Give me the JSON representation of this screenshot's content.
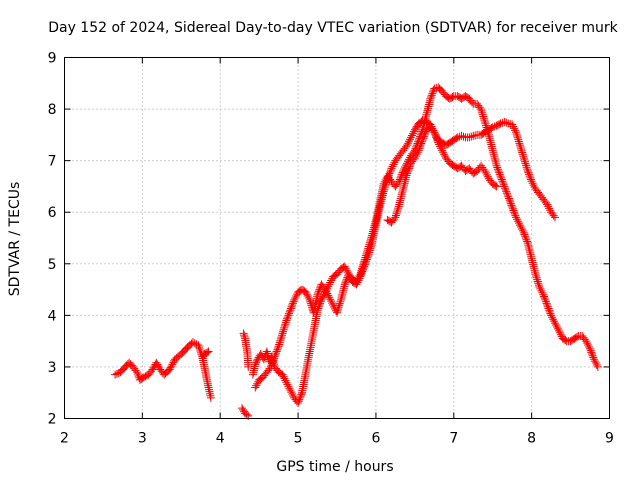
{
  "chart_data": {
    "type": "scatter",
    "title": "Day 152 of 2024, Sidereal Day-to-day VTEC variation (SDTVAR) for receiver murk",
    "xlabel": "GPS time / hours",
    "ylabel": "SDTVAR / TECUs",
    "xlim": [
      2,
      9
    ],
    "ylim": [
      2,
      9
    ],
    "xticks": [
      2,
      3,
      4,
      5,
      6,
      7,
      8,
      9
    ],
    "yticks": [
      2,
      3,
      4,
      5,
      6,
      7,
      8,
      9
    ],
    "grid": true,
    "marker": "+",
    "series": [
      {
        "name": "SDTVAR",
        "color": "#ff0000",
        "segments": [
          [
            [
              2.65,
              2.85
            ],
            [
              2.72,
              2.9
            ],
            [
              2.78,
              3.0
            ],
            [
              2.83,
              3.08
            ],
            [
              2.88,
              3.0
            ],
            [
              2.93,
              2.9
            ],
            [
              2.97,
              2.75
            ],
            [
              3.02,
              2.8
            ],
            [
              3.08,
              2.85
            ],
            [
              3.13,
              2.95
            ],
            [
              3.18,
              3.08
            ],
            [
              3.23,
              2.95
            ],
            [
              3.28,
              2.85
            ],
            [
              3.35,
              2.95
            ],
            [
              3.42,
              3.15
            ],
            [
              3.5,
              3.25
            ],
            [
              3.58,
              3.38
            ],
            [
              3.65,
              3.48
            ],
            [
              3.72,
              3.42
            ],
            [
              3.77,
              3.2
            ],
            [
              3.81,
              2.9
            ],
            [
              3.85,
              2.6
            ],
            [
              3.88,
              2.4
            ]
          ],
          [
            [
              3.78,
              3.2
            ],
            [
              3.8,
              3.25
            ],
            [
              3.85,
              3.3
            ]
          ],
          [
            [
              4.3,
              3.65
            ],
            [
              4.32,
              3.55
            ],
            [
              4.35,
              3.25
            ],
            [
              4.36,
              3.0
            ]
          ],
          [
            [
              4.28,
              2.2
            ],
            [
              4.32,
              2.1
            ],
            [
              4.36,
              2.05
            ]
          ],
          [
            [
              4.42,
              2.85
            ],
            [
              4.45,
              3.05
            ],
            [
              4.48,
              3.15
            ],
            [
              4.52,
              3.25
            ],
            [
              4.56,
              3.15
            ],
            [
              4.6,
              3.3
            ],
            [
              4.63,
              3.1
            ],
            [
              4.66,
              3.2
            ],
            [
              4.7,
              3.0
            ],
            [
              4.75,
              2.9
            ],
            [
              4.8,
              2.85
            ],
            [
              4.85,
              2.7
            ],
            [
              4.9,
              2.55
            ],
            [
              4.95,
              2.4
            ],
            [
              5.0,
              2.3
            ],
            [
              5.05,
              2.5
            ],
            [
              5.1,
              2.9
            ],
            [
              5.15,
              3.3
            ],
            [
              5.2,
              3.7
            ],
            [
              5.25,
              4.1
            ],
            [
              5.3,
              4.3
            ],
            [
              5.35,
              4.45
            ],
            [
              5.4,
              4.6
            ],
            [
              5.45,
              4.75
            ],
            [
              5.5,
              4.8
            ],
            [
              5.55,
              4.9
            ],
            [
              5.6,
              4.95
            ],
            [
              5.65,
              4.8
            ],
            [
              5.7,
              4.65
            ],
            [
              5.75,
              4.6
            ],
            [
              5.8,
              4.75
            ],
            [
              5.85,
              4.95
            ],
            [
              5.9,
              5.15
            ],
            [
              5.95,
              5.4
            ],
            [
              6.0,
              5.75
            ],
            [
              6.05,
              6.1
            ],
            [
              6.1,
              6.4
            ],
            [
              6.15,
              6.65
            ],
            [
              6.2,
              6.85
            ],
            [
              6.25,
              7.0
            ],
            [
              6.3,
              7.1
            ],
            [
              6.35,
              7.2
            ],
            [
              6.4,
              7.3
            ],
            [
              6.45,
              7.45
            ],
            [
              6.5,
              7.6
            ],
            [
              6.55,
              7.72
            ],
            [
              6.6,
              7.78
            ],
            [
              6.65,
              7.75
            ],
            [
              6.7,
              7.7
            ],
            [
              6.75,
              7.55
            ],
            [
              6.8,
              7.35
            ],
            [
              6.85,
              7.2
            ],
            [
              6.9,
              7.05
            ],
            [
              6.95,
              6.95
            ],
            [
              7.0,
              6.9
            ],
            [
              7.05,
              6.85
            ],
            [
              7.1,
              6.9
            ],
            [
              7.15,
              6.8
            ],
            [
              7.2,
              6.85
            ],
            [
              7.25,
              6.75
            ],
            [
              7.3,
              6.8
            ],
            [
              7.35,
              6.9
            ],
            [
              7.4,
              6.8
            ],
            [
              7.45,
              6.65
            ],
            [
              7.5,
              6.55
            ],
            [
              7.55,
              6.5
            ]
          ],
          [
            [
              4.45,
              2.6
            ],
            [
              4.5,
              2.75
            ],
            [
              4.55,
              2.8
            ],
            [
              4.6,
              2.9
            ],
            [
              4.65,
              3.0
            ],
            [
              4.7,
              3.2
            ],
            [
              4.75,
              3.4
            ],
            [
              4.8,
              3.65
            ],
            [
              4.85,
              3.9
            ],
            [
              4.9,
              4.1
            ],
            [
              4.95,
              4.3
            ],
            [
              5.0,
              4.45
            ],
            [
              5.05,
              4.5
            ],
            [
              5.1,
              4.45
            ],
            [
              5.15,
              4.3
            ],
            [
              5.2,
              4.05
            ],
            [
              5.25,
              4.4
            ],
            [
              5.3,
              4.6
            ],
            [
              5.35,
              4.5
            ],
            [
              5.4,
              4.35
            ],
            [
              5.45,
              4.2
            ],
            [
              5.5,
              4.05
            ],
            [
              5.55,
              4.3
            ],
            [
              5.6,
              4.6
            ],
            [
              5.65,
              4.8
            ],
            [
              5.7,
              4.7
            ],
            [
              5.75,
              4.65
            ],
            [
              5.8,
              4.8
            ],
            [
              5.85,
              5.05
            ],
            [
              5.9,
              5.3
            ],
            [
              5.95,
              5.55
            ],
            [
              6.0,
              5.85
            ],
            [
              6.05,
              6.2
            ],
            [
              6.1,
              6.55
            ],
            [
              6.15,
              6.7
            ],
            [
              6.2,
              6.6
            ],
            [
              6.25,
              6.5
            ],
            [
              6.3,
              6.6
            ],
            [
              6.35,
              6.8
            ],
            [
              6.4,
              6.95
            ],
            [
              6.45,
              7.1
            ],
            [
              6.5,
              7.2
            ],
            [
              6.55,
              7.4
            ],
            [
              6.6,
              7.6
            ],
            [
              6.65,
              7.9
            ],
            [
              6.7,
              8.2
            ],
            [
              6.75,
              8.4
            ],
            [
              6.8,
              8.42
            ],
            [
              6.85,
              8.35
            ],
            [
              6.9,
              8.25
            ],
            [
              6.95,
              8.2
            ],
            [
              7.0,
              8.25
            ],
            [
              7.05,
              8.25
            ],
            [
              7.1,
              8.2
            ],
            [
              7.15,
              8.25
            ],
            [
              7.2,
              8.2
            ],
            [
              7.25,
              8.1
            ],
            [
              7.3,
              8.1
            ],
            [
              7.35,
              8.0
            ],
            [
              7.4,
              7.75
            ],
            [
              7.45,
              7.5
            ],
            [
              7.5,
              7.2
            ],
            [
              7.55,
              6.9
            ],
            [
              7.6,
              6.7
            ],
            [
              7.65,
              6.5
            ],
            [
              7.7,
              6.3
            ],
            [
              7.75,
              6.1
            ],
            [
              7.8,
              5.9
            ],
            [
              7.85,
              5.75
            ],
            [
              7.9,
              5.6
            ],
            [
              7.95,
              5.4
            ],
            [
              8.0,
              5.1
            ],
            [
              8.05,
              4.8
            ],
            [
              8.1,
              4.55
            ],
            [
              8.15,
              4.4
            ],
            [
              8.2,
              4.2
            ],
            [
              8.25,
              4.0
            ],
            [
              8.3,
              3.85
            ],
            [
              8.35,
              3.7
            ],
            [
              8.4,
              3.55
            ],
            [
              8.45,
              3.5
            ],
            [
              8.5,
              3.5
            ],
            [
              8.55,
              3.55
            ],
            [
              8.6,
              3.6
            ],
            [
              8.65,
              3.6
            ],
            [
              8.7,
              3.5
            ],
            [
              8.75,
              3.35
            ],
            [
              8.8,
              3.15
            ],
            [
              8.85,
              3.0
            ]
          ],
          [
            [
              6.15,
              5.85
            ],
            [
              6.2,
              5.8
            ],
            [
              6.25,
              5.9
            ],
            [
              6.3,
              6.15
            ],
            [
              6.35,
              6.45
            ],
            [
              6.4,
              6.75
            ],
            [
              6.45,
              6.95
            ],
            [
              6.5,
              7.05
            ],
            [
              6.55,
              7.2
            ],
            [
              6.6,
              7.4
            ],
            [
              6.65,
              7.6
            ],
            [
              6.7,
              7.65
            ],
            [
              6.75,
              7.55
            ],
            [
              6.8,
              7.4
            ],
            [
              6.85,
              7.35
            ],
            [
              6.9,
              7.3
            ],
            [
              6.95,
              7.35
            ],
            [
              7.0,
              7.4
            ],
            [
              7.05,
              7.45
            ],
            [
              7.1,
              7.48
            ],
            [
              7.15,
              7.45
            ],
            [
              7.2,
              7.45
            ],
            [
              7.25,
              7.48
            ],
            [
              7.3,
              7.5
            ],
            [
              7.35,
              7.5
            ],
            [
              7.4,
              7.55
            ],
            [
              7.45,
              7.6
            ],
            [
              7.5,
              7.65
            ],
            [
              7.55,
              7.68
            ],
            [
              7.6,
              7.72
            ],
            [
              7.65,
              7.75
            ],
            [
              7.7,
              7.72
            ],
            [
              7.75,
              7.7
            ],
            [
              7.8,
              7.55
            ],
            [
              7.85,
              7.3
            ],
            [
              7.9,
              7.05
            ],
            [
              7.95,
              6.8
            ],
            [
              8.0,
              6.6
            ],
            [
              8.05,
              6.45
            ],
            [
              8.1,
              6.35
            ],
            [
              8.15,
              6.25
            ],
            [
              8.2,
              6.15
            ],
            [
              8.25,
              6.0
            ],
            [
              8.3,
              5.9
            ]
          ]
        ]
      }
    ]
  }
}
